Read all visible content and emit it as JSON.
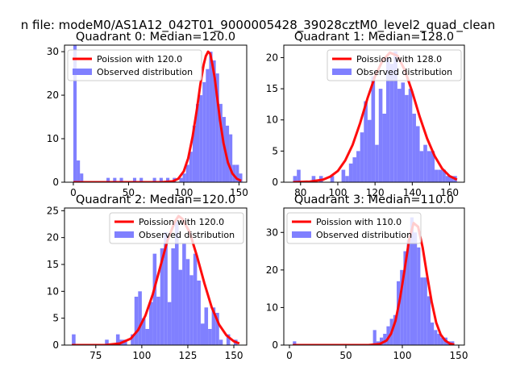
{
  "figure_title": "n file: modeM0/AS1A12_042T01_9000005428_39028cztM0_level2_quad_clean",
  "colors": {
    "hist": "#8080ff",
    "poisson": "#ff0000",
    "axes": "#000000",
    "background": "#ffffff"
  },
  "chart_data": [
    {
      "type": "bar",
      "title": "Quadrant 0: Median=120.0",
      "xlim": [
        -8,
        157
      ],
      "ylim": [
        0,
        31.5
      ],
      "xticks": [
        0,
        50,
        100,
        150
      ],
      "yticks": [
        0,
        10,
        20,
        30
      ],
      "legend_position": "upper left",
      "grid": false,
      "series": [
        {
          "name": "Poission with 120.0",
          "kind": "line",
          "x": [
            0,
            80,
            90,
            95,
            100,
            104,
            108,
            112,
            115,
            118,
            120,
            122,
            124,
            126,
            128,
            130,
            133,
            136,
            140,
            144,
            148,
            152
          ],
          "y": [
            0,
            0,
            0.2,
            0.8,
            2.5,
            5.5,
            10.5,
            17,
            22.5,
            27,
            29,
            30,
            29.5,
            27,
            24,
            20,
            14,
            9,
            4.5,
            2,
            0.8,
            0.3
          ]
        },
        {
          "name": "Observed distribution",
          "kind": "hist",
          "bin_width": 3,
          "bin_starts": [
            0,
            3,
            6,
            30,
            36,
            42,
            54,
            60,
            72,
            78,
            84,
            90,
            96,
            99,
            102,
            105,
            108,
            111,
            114,
            117,
            120,
            123,
            126,
            129,
            132,
            135,
            138,
            141,
            144,
            147,
            150
          ],
          "values": [
            32,
            5,
            2,
            1,
            1,
            1,
            1,
            1,
            1,
            1,
            1,
            1,
            1,
            2,
            4,
            7,
            13,
            18,
            20,
            23,
            26,
            30,
            28,
            25,
            18,
            15,
            13,
            11,
            4,
            4,
            2
          ]
        }
      ]
    },
    {
      "type": "bar",
      "title": "Quadrant 1: Median=128.0",
      "xlim": [
        71,
        168
      ],
      "ylim": [
        0,
        22
      ],
      "xticks": [
        80,
        100,
        120,
        140,
        160
      ],
      "yticks": [
        0,
        5,
        10,
        15,
        20
      ],
      "legend_position": "upper right",
      "grid": false,
      "series": [
        {
          "name": "Poission with 128.0",
          "kind": "line",
          "x": [
            76,
            85,
            92,
            96,
            100,
            104,
            108,
            112,
            116,
            120,
            124,
            128,
            132,
            136,
            140,
            144,
            148,
            152,
            156,
            160,
            164
          ],
          "y": [
            0,
            0.1,
            0.4,
            0.9,
            1.8,
            3.5,
            6,
            9.5,
            13.5,
            17,
            19.5,
            20.8,
            20.3,
            18,
            14.5,
            10.5,
            7,
            4.2,
            2.2,
            1,
            0.4
          ]
        },
        {
          "name": "Observed distribution",
          "kind": "hist",
          "bin_width": 2,
          "bin_starts": [
            76,
            78,
            86,
            90,
            96,
            102,
            104,
            106,
            108,
            110,
            112,
            114,
            116,
            118,
            120,
            122,
            124,
            126,
            128,
            130,
            132,
            134,
            136,
            138,
            140,
            142,
            144,
            146,
            148,
            150,
            152,
            154,
            156,
            158,
            160,
            162
          ],
          "values": [
            1,
            2,
            1,
            1,
            1,
            2,
            1,
            3,
            4,
            5,
            8,
            13,
            10,
            17,
            6,
            15,
            11,
            20,
            19,
            21,
            15,
            16,
            14,
            15,
            11,
            9,
            5,
            6,
            5,
            5,
            2,
            2,
            2,
            1,
            1,
            1
          ]
        }
      ]
    },
    {
      "type": "bar",
      "title": "Quadrant 2: Median=120.0",
      "xlim": [
        58,
        157
      ],
      "ylim": [
        0,
        25.5
      ],
      "xticks": [
        75,
        100,
        125,
        150
      ],
      "yticks": [
        0,
        5,
        10,
        15,
        20,
        25
      ],
      "legend_position": "upper right",
      "grid": false,
      "series": [
        {
          "name": "Poission with 120.0",
          "kind": "line",
          "x": [
            62,
            80,
            88,
            94,
            98,
            102,
            106,
            110,
            114,
            118,
            120,
            122,
            126,
            130,
            134,
            138,
            142,
            146,
            150,
            153
          ],
          "y": [
            0,
            0,
            0.3,
            1.2,
            2.8,
            5.5,
            9.5,
            14.5,
            19.5,
            23,
            24,
            23.5,
            21,
            16.5,
            11.5,
            7,
            3.8,
            1.8,
            0.7,
            0.3
          ]
        },
        {
          "name": "Observed distribution",
          "kind": "hist",
          "bin_width": 2,
          "bin_starts": [
            62,
            80,
            86,
            88,
            90,
            94,
            96,
            98,
            100,
            102,
            104,
            106,
            108,
            110,
            112,
            114,
            116,
            118,
            120,
            122,
            124,
            126,
            128,
            130,
            132,
            134,
            136,
            138,
            140,
            142,
            146,
            150
          ],
          "values": [
            2,
            1,
            2,
            1,
            1,
            2,
            9,
            10,
            5,
            3,
            8,
            17,
            9,
            18,
            21,
            8,
            18,
            23,
            14,
            19,
            16,
            13,
            17,
            12,
            4,
            7,
            3,
            7,
            6,
            1,
            2,
            1
          ]
        }
      ]
    },
    {
      "type": "bar",
      "title": "Quadrant 3: Median=110.0",
      "xlim": [
        -5,
        155
      ],
      "ylim": [
        0,
        36.5
      ],
      "xticks": [
        0,
        50,
        100,
        150
      ],
      "yticks": [
        0,
        10,
        20,
        30
      ],
      "legend_position": "upper left",
      "grid": false,
      "series": [
        {
          "name": "Poission with 110.0",
          "kind": "line",
          "x": [
            3,
            70,
            80,
            86,
            90,
            94,
            98,
            102,
            106,
            110,
            114,
            118,
            122,
            126,
            130,
            134,
            138,
            142,
            146
          ],
          "y": [
            0,
            0,
            0.3,
            1.2,
            3,
            6.5,
            12.5,
            20,
            28,
            32.5,
            31.5,
            26,
            18.5,
            11.5,
            6,
            2.8,
            1.2,
            0.4,
            0.1
          ]
        },
        {
          "name": "Observed distribution",
          "kind": "hist",
          "bin_width": 3,
          "bin_starts": [
            3,
            74,
            77,
            80,
            83,
            86,
            89,
            92,
            95,
            98,
            101,
            104,
            107,
            110,
            113,
            116,
            119,
            122,
            125,
            128,
            131,
            134,
            137,
            140,
            143
          ],
          "values": [
            1,
            4,
            1,
            2,
            3,
            5,
            7,
            8,
            17,
            20,
            25,
            28,
            34,
            30,
            26,
            18,
            18,
            13,
            6,
            4,
            3,
            2,
            2,
            1,
            1
          ]
        }
      ]
    }
  ]
}
